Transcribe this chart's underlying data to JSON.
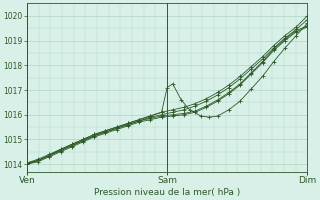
{
  "xlabel": "Pression niveau de la mer( hPa )",
  "bg_color": "#d8f0e8",
  "grid_color": "#b0d4c4",
  "line_color": "#2d5a27",
  "ylim": [
    1013.7,
    1020.5
  ],
  "yticks": [
    1014,
    1015,
    1016,
    1017,
    1018,
    1019,
    1020
  ],
  "xtick_labels": [
    "Ven",
    "Sam",
    "Dim"
  ],
  "xtick_positions": [
    0.0,
    0.5,
    1.0
  ],
  "series": [
    {
      "x": [
        0.0,
        0.04,
        0.08,
        0.12,
        0.16,
        0.2,
        0.24,
        0.28,
        0.32,
        0.36,
        0.4,
        0.44,
        0.48,
        0.52,
        0.56,
        0.6,
        0.64,
        0.68,
        0.72,
        0.76,
        0.8,
        0.84,
        0.88,
        0.92,
        0.96,
        1.0
      ],
      "y": [
        1014.0,
        1014.1,
        1014.3,
        1014.5,
        1014.7,
        1014.9,
        1015.1,
        1015.25,
        1015.4,
        1015.55,
        1015.7,
        1015.8,
        1015.9,
        1015.95,
        1016.0,
        1016.1,
        1016.3,
        1016.55,
        1016.85,
        1017.2,
        1017.65,
        1018.1,
        1018.6,
        1019.0,
        1019.35,
        1019.55
      ]
    },
    {
      "x": [
        0.0,
        0.04,
        0.08,
        0.12,
        0.16,
        0.2,
        0.24,
        0.28,
        0.32,
        0.36,
        0.4,
        0.44,
        0.48,
        0.52,
        0.56,
        0.6,
        0.64,
        0.68,
        0.72,
        0.76,
        0.8,
        0.84,
        0.88,
        0.92,
        0.96,
        1.0
      ],
      "y": [
        1014.05,
        1014.15,
        1014.35,
        1014.55,
        1014.75,
        1014.95,
        1015.15,
        1015.3,
        1015.45,
        1015.6,
        1015.75,
        1015.85,
        1015.95,
        1016.0,
        1016.05,
        1016.15,
        1016.35,
        1016.6,
        1016.9,
        1017.25,
        1017.7,
        1018.15,
        1018.65,
        1019.05,
        1019.4,
        1019.6
      ]
    },
    {
      "x": [
        0.0,
        0.04,
        0.08,
        0.12,
        0.16,
        0.2,
        0.24,
        0.28,
        0.32,
        0.36,
        0.4,
        0.44,
        0.48,
        0.5,
        0.52,
        0.55,
        0.58,
        0.62,
        0.65,
        0.68,
        0.72,
        0.76,
        0.8,
        0.84,
        0.88,
        0.92,
        0.96,
        1.0
      ],
      "y": [
        1014.05,
        1014.2,
        1014.4,
        1014.6,
        1014.8,
        1015.0,
        1015.2,
        1015.35,
        1015.5,
        1015.65,
        1015.8,
        1015.95,
        1016.1,
        1017.1,
        1017.25,
        1016.6,
        1016.2,
        1015.95,
        1015.9,
        1015.95,
        1016.2,
        1016.55,
        1017.05,
        1017.55,
        1018.15,
        1018.7,
        1019.2,
        1019.7
      ]
    },
    {
      "x": [
        0.0,
        0.04,
        0.08,
        0.12,
        0.16,
        0.2,
        0.24,
        0.28,
        0.32,
        0.36,
        0.4,
        0.44,
        0.48,
        0.52,
        0.56,
        0.6,
        0.64,
        0.68,
        0.72,
        0.76,
        0.8,
        0.84,
        0.88,
        0.92,
        0.96,
        1.0
      ],
      "y": [
        1014.0,
        1014.15,
        1014.35,
        1014.55,
        1014.75,
        1014.95,
        1015.15,
        1015.3,
        1015.45,
        1015.6,
        1015.75,
        1015.9,
        1016.0,
        1016.1,
        1016.2,
        1016.35,
        1016.55,
        1016.8,
        1017.1,
        1017.45,
        1017.85,
        1018.25,
        1018.7,
        1019.1,
        1019.45,
        1019.85
      ]
    },
    {
      "x": [
        0.0,
        0.04,
        0.08,
        0.12,
        0.16,
        0.2,
        0.24,
        0.28,
        0.32,
        0.36,
        0.4,
        0.44,
        0.48,
        0.52,
        0.56,
        0.6,
        0.64,
        0.68,
        0.72,
        0.76,
        0.8,
        0.84,
        0.88,
        0.92,
        0.96,
        1.0
      ],
      "y": [
        1014.0,
        1014.15,
        1014.35,
        1014.6,
        1014.8,
        1015.0,
        1015.2,
        1015.35,
        1015.5,
        1015.65,
        1015.8,
        1015.95,
        1016.1,
        1016.2,
        1016.3,
        1016.45,
        1016.65,
        1016.9,
        1017.2,
        1017.55,
        1017.95,
        1018.35,
        1018.8,
        1019.2,
        1019.55,
        1020.0
      ]
    }
  ]
}
